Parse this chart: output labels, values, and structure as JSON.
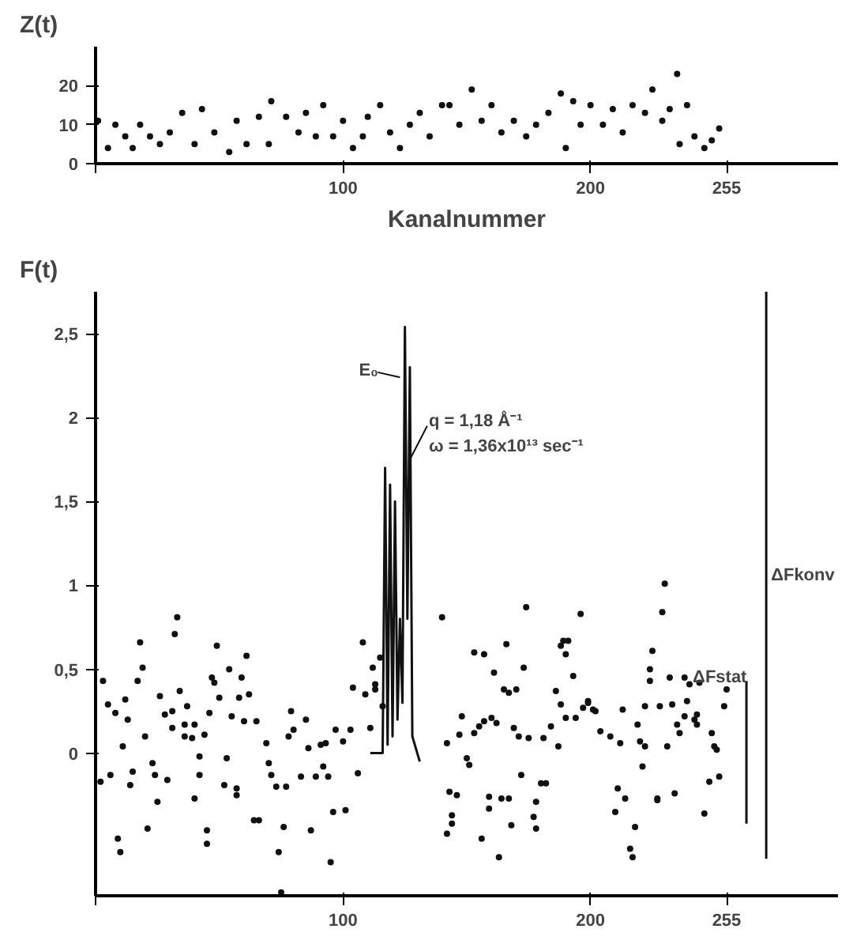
{
  "chart_data": [
    {
      "type": "scatter",
      "ylabel": "Z(t)",
      "xlabel": "Kanalnummer",
      "xlim": [
        0,
        300
      ],
      "xticks": [
        {
          "value": 0,
          "label": null
        },
        100,
        200,
        255
      ],
      "ylim": [
        0,
        30
      ],
      "yticks": [
        0,
        10,
        20
      ],
      "marker": "circle",
      "color": "#111111",
      "x": [
        1,
        5,
        8,
        12,
        15,
        18,
        22,
        26,
        30,
        35,
        40,
        43,
        48,
        54,
        57,
        61,
        66,
        70,
        71,
        77,
        82,
        85,
        89,
        92,
        96,
        100,
        104,
        108,
        110,
        115,
        119,
        123,
        127,
        131,
        135,
        140,
        143,
        147,
        152,
        156,
        160,
        164,
        169,
        174,
        178,
        183,
        188,
        190,
        193,
        196,
        200,
        205,
        209,
        213,
        217,
        222,
        225,
        229,
        232,
        235,
        236,
        239,
        242,
        246,
        249,
        252
      ],
      "values": [
        11,
        4,
        10,
        7,
        4,
        10,
        7,
        5,
        8,
        13,
        5,
        14,
        8,
        3,
        11,
        5,
        12,
        5,
        16,
        12,
        8,
        13,
        7,
        15,
        7,
        11,
        4,
        7,
        12,
        15,
        8,
        4,
        10,
        13,
        7,
        15,
        15,
        10,
        19,
        11,
        15,
        8,
        11,
        7,
        10,
        13,
        18,
        4,
        16,
        10,
        15,
        10,
        14,
        8,
        15,
        13,
        19,
        11,
        14,
        23,
        5,
        15,
        7,
        4,
        6,
        9
      ]
    },
    {
      "type": "scatter",
      "ylabel": "F(t)",
      "xlim": [
        0,
        300
      ],
      "xticks": [
        {
          "value": 0,
          "label": null
        },
        100,
        200,
        255
      ],
      "ylim": [
        -0.85,
        2.75
      ],
      "yticks": [
        0,
        {
          "value": 0.5,
          "label": "0,5"
        },
        1,
        {
          "value": 1.5,
          "label": "1,5"
        },
        2,
        {
          "value": 2.5,
          "label": "2,5"
        }
      ],
      "marker": "circle",
      "annotations": [
        {
          "text": "E₀",
          "x": 123,
          "y": 2.24
        },
        {
          "text": "q = 1,18 Å⁻¹",
          "x": 127,
          "y": 1.75
        },
        "ω = 1,36x10¹³ sec⁻¹"
      ],
      "series": [
        {
          "type": "scatter",
          "color": "#111111",
          "x": [
            3,
            5,
            8,
            12,
            13,
            11,
            6,
            2,
            9,
            10,
            14,
            15,
            18,
            19,
            17,
            20,
            21,
            23,
            24,
            25,
            26,
            28,
            29,
            32,
            33,
            34,
            31,
            31,
            36,
            37,
            36,
            39,
            40,
            40,
            42,
            42,
            44,
            45,
            45,
            47,
            48,
            46,
            49,
            50,
            52,
            53,
            54,
            55,
            57,
            57,
            58,
            59,
            60,
            61,
            62,
            64,
            65,
            66,
            69,
            70,
            71,
            73,
            74,
            75,
            76,
            77,
            78,
            79,
            80,
            83,
            85,
            86,
            87,
            89,
            91,
            92,
            93,
            94,
            96,
            95,
            97,
            100,
            101,
            103,
            104,
            106,
            108,
            109,
            111,
            112,
            113,
            113,
            115,
            116,
            140,
            142,
            143,
            142,
            144,
            144,
            146,
            148,
            147,
            150,
            151,
            153,
            153,
            155,
            156,
            157,
            157,
            159,
            159,
            161,
            160,
            162,
            163,
            164,
            165,
            166,
            167,
            167,
            168,
            169,
            170,
            171,
            172,
            173,
            174,
            175,
            177,
            178,
            178,
            180,
            181,
            182,
            184,
            186,
            187,
            188,
            189,
            190,
            191,
            188,
            190,
            193,
            194,
            196,
            197,
            199,
            199,
            201,
            202,
            204,
            208,
            210,
            211,
            212,
            213,
            214,
            216,
            217,
            218,
            219,
            220,
            221,
            222,
            222,
            224,
            224,
            225,
            227,
            227,
            228,
            229,
            230,
            231,
            232,
            233,
            234,
            235,
            236,
            238,
            238,
            239,
            240,
            242,
            243,
            243,
            244,
            246,
            248,
            249,
            250,
            251,
            252,
            255,
            254
          ],
          "values": [
            0.43,
            0.29,
            0.24,
            0.32,
            0.2,
            0.04,
            -0.13,
            -0.17,
            -0.51,
            -0.59,
            -0.19,
            -0.11,
            0.66,
            0.51,
            0.43,
            0.1,
            -0.45,
            -0.06,
            -0.13,
            -0.29,
            0.34,
            0.23,
            -0.16,
            0.71,
            0.81,
            0.37,
            0.25,
            0.15,
            0.1,
            0.28,
            0.17,
            0.09,
            0.17,
            -0.27,
            -0.02,
            -0.13,
            0.11,
            -0.46,
            -0.54,
            0.45,
            0.42,
            0.24,
            0.64,
            0.33,
            -0.19,
            -0.03,
            0.5,
            0.22,
            -0.21,
            -0.25,
            0.33,
            0.45,
            0.19,
            0.58,
            0.35,
            -0.4,
            0.19,
            -0.4,
            0.06,
            -0.06,
            -0.13,
            -0.2,
            -0.59,
            -0.83,
            -0.44,
            -0.2,
            0.1,
            0.25,
            0.14,
            -0.14,
            0.2,
            0.03,
            -0.46,
            -0.14,
            0.05,
            -0.08,
            0.06,
            -0.14,
            -0.35,
            -0.65,
            0.14,
            0.07,
            -0.34,
            0.14,
            0.39,
            -0.12,
            0.66,
            0.35,
            0.15,
            0.51,
            0.41,
            0.38,
            0.57,
            0.28,
            0.81,
            0.06,
            -0.23,
            -0.48,
            -0.37,
            -0.42,
            -0.25,
            0.22,
            0.11,
            -0.03,
            -0.07,
            0.6,
            0.12,
            0.16,
            -0.51,
            0.59,
            0.19,
            -0.26,
            -0.33,
            0.48,
            0.21,
            0.18,
            -0.62,
            -0.27,
            0.38,
            0.65,
            -0.27,
            0.36,
            -0.43,
            0.15,
            0.38,
            0.1,
            -0.13,
            0.51,
            0.87,
            0.09,
            -0.38,
            -0.29,
            -0.45,
            -0.18,
            0.09,
            -0.18,
            0.16,
            0.37,
            0.04,
            0.64,
            0.67,
            0.59,
            0.67,
            0.29,
            0.21,
            0.46,
            0.21,
            0.83,
            0.27,
            0.31,
            0.3,
            0.26,
            0.25,
            0.13,
            0.1,
            -0.35,
            -0.21,
            0.06,
            0.26,
            -0.27,
            -0.57,
            -0.62,
            -0.44,
            0.17,
            0.07,
            -0.08,
            0.04,
            0.28,
            0.5,
            0.43,
            0.61,
            -0.28,
            -0.27,
            0.28,
            0.84,
            1.01,
            0.04,
            0.45,
            0.29,
            -0.24,
            0.17,
            0.12,
            0.45,
            0.22,
            0.31,
            0.41,
            0.2,
            0.17,
            0.23,
            0.42,
            -0.36,
            -0.17,
            0.12,
            0.04,
            0.02,
            -0.14,
            0.38,
            0.28
          ]
        },
        {
          "type": "line",
          "color": "#111111",
          "marker": "none",
          "x": [
            111,
            116,
            117,
            118,
            119,
            120,
            121,
            122,
            123,
            124,
            125,
            126,
            127,
            128,
            130,
            131
          ],
          "values": [
            0,
            0,
            1.7,
            0.05,
            1.6,
            0.1,
            1.5,
            0.2,
            0.8,
            0.3,
            2.54,
            0.8,
            2.3,
            0.1,
            0,
            -0.05
          ]
        },
        {
          "type": "line",
          "name": "ΔFstat",
          "color": "#111111",
          "marker": "none",
          "x": [
            263,
            263
          ],
          "values": [
            0.43,
            -0.42
          ]
        },
        {
          "type": "line",
          "name": "ΔFkonv",
          "color": "#111111",
          "marker": "none",
          "x": [
            271,
            271
          ],
          "values": [
            -0.63,
            2.75
          ]
        }
      ]
    }
  ]
}
